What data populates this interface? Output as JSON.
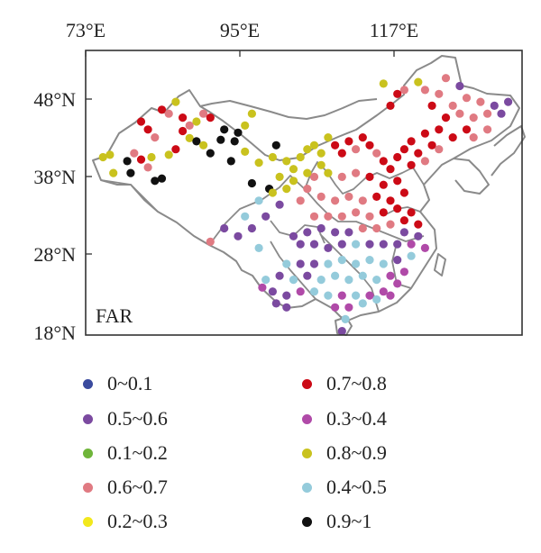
{
  "map": {
    "panel_label": "FAR",
    "lon_ticks": [
      "73°E",
      "95°E",
      "117°E"
    ],
    "lat_ticks": [
      "48°N",
      "38°N",
      "28°N",
      "18°N"
    ],
    "extent": {
      "lon": [
        73,
        136
      ],
      "lat": [
        18,
        54
      ]
    },
    "frame_color": "#333333",
    "border_color": "#8a8a8a"
  },
  "legend": [
    {
      "label": "0~0.1",
      "color": "#3a4a9e"
    },
    {
      "label": "0.7~0.8",
      "color": "#cc0a16"
    },
    {
      "label": "0.5~0.6",
      "color": "#7b4aa0"
    },
    {
      "label": "0.3~0.4",
      "color": "#b04aa8"
    },
    {
      "label": "0.1~0.2",
      "color": "#6fb53a"
    },
    {
      "label": "0.8~0.9",
      "color": "#c9c21e"
    },
    {
      "label": "0.6~0.7",
      "color": "#e07a82"
    },
    {
      "label": "0.4~0.5",
      "color": "#94cbdb"
    },
    {
      "label": "0.2~0.3",
      "color": "#f2e81c"
    },
    {
      "label": "0.9~1",
      "color": "#111111"
    }
  ],
  "stations": [
    {
      "lon": 75.5,
      "lat": 40.5,
      "c": "#c9c21e"
    },
    {
      "lon": 76.5,
      "lat": 40.8,
      "c": "#c9c21e"
    },
    {
      "lon": 77,
      "lat": 38.5,
      "c": "#c9c21e"
    },
    {
      "lon": 79,
      "lat": 40.0,
      "c": "#111111"
    },
    {
      "lon": 79.5,
      "lat": 38.5,
      "c": "#111111"
    },
    {
      "lon": 80,
      "lat": 41.0,
      "c": "#e07a82"
    },
    {
      "lon": 81,
      "lat": 40.2,
      "c": "#cc0a16"
    },
    {
      "lon": 82,
      "lat": 39.2,
      "c": "#e07a82"
    },
    {
      "lon": 82.5,
      "lat": 40.5,
      "c": "#c9c21e"
    },
    {
      "lon": 83,
      "lat": 37.5,
      "c": "#111111"
    },
    {
      "lon": 84,
      "lat": 37.8,
      "c": "#111111"
    },
    {
      "lon": 85,
      "lat": 40.8,
      "c": "#c9c21e"
    },
    {
      "lon": 86,
      "lat": 41.5,
      "c": "#cc0a16"
    },
    {
      "lon": 87,
      "lat": 43.8,
      "c": "#cc0a16"
    },
    {
      "lon": 88,
      "lat": 42.9,
      "c": "#c9c21e"
    },
    {
      "lon": 89,
      "lat": 42.5,
      "c": "#111111"
    },
    {
      "lon": 90,
      "lat": 42.0,
      "c": "#c9c21e"
    },
    {
      "lon": 91,
      "lat": 41.0,
      "c": "#111111"
    },
    {
      "lon": 92.5,
      "lat": 42.7,
      "c": "#111111"
    },
    {
      "lon": 94,
      "lat": 40.0,
      "c": "#111111"
    },
    {
      "lon": 95,
      "lat": 43.6,
      "c": "#111111"
    },
    {
      "lon": 96,
      "lat": 41.2,
      "c": "#c9c21e"
    },
    {
      "lon": 98,
      "lat": 39.8,
      "c": "#c9c21e"
    },
    {
      "lon": 97,
      "lat": 37.2,
      "c": "#111111"
    },
    {
      "lon": 99.5,
      "lat": 36.5,
      "c": "#111111"
    },
    {
      "lon": 101,
      "lat": 38.0,
      "c": "#c9c21e"
    },
    {
      "lon": 100.5,
      "lat": 42.0,
      "c": "#111111"
    },
    {
      "lon": 84,
      "lat": 46.5,
      "c": "#cc0a16"
    },
    {
      "lon": 85,
      "lat": 46.0,
      "c": "#e07a82"
    },
    {
      "lon": 86,
      "lat": 47.5,
      "c": "#c9c21e"
    },
    {
      "lon": 87,
      "lat": 45.5,
      "c": "#cc0a16"
    },
    {
      "lon": 88,
      "lat": 44.5,
      "c": "#e07a82"
    },
    {
      "lon": 89,
      "lat": 45.0,
      "c": "#c9c21e"
    },
    {
      "lon": 90,
      "lat": 46.0,
      "c": "#e07a82"
    },
    {
      "lon": 91,
      "lat": 45.5,
      "c": "#cc0a16"
    },
    {
      "lon": 93,
      "lat": 44.0,
      "c": "#111111"
    },
    {
      "lon": 94.5,
      "lat": 42.5,
      "c": "#111111"
    },
    {
      "lon": 96,
      "lat": 44.5,
      "c": "#c9c21e"
    },
    {
      "lon": 97,
      "lat": 46.0,
      "c": "#c9c21e"
    },
    {
      "lon": 82,
      "lat": 44.0,
      "c": "#cc0a16"
    },
    {
      "lon": 81,
      "lat": 45.0,
      "c": "#cc0a16"
    },
    {
      "lon": 83,
      "lat": 43.0,
      "c": "#e07a82"
    },
    {
      "lon": 100,
      "lat": 40.5,
      "c": "#c9c21e"
    },
    {
      "lon": 102,
      "lat": 40.0,
      "c": "#c9c21e"
    },
    {
      "lon": 103,
      "lat": 39.0,
      "c": "#c9c21e"
    },
    {
      "lon": 104,
      "lat": 40.5,
      "c": "#c9c21e"
    },
    {
      "lon": 105,
      "lat": 41.5,
      "c": "#c9c21e"
    },
    {
      "lon": 106,
      "lat": 42.0,
      "c": "#c9c21e"
    },
    {
      "lon": 107,
      "lat": 41.0,
      "c": "#c9c21e"
    },
    {
      "lon": 108,
      "lat": 43.0,
      "c": "#c9c21e"
    },
    {
      "lon": 109,
      "lat": 42.0,
      "c": "#cc0a16"
    },
    {
      "lon": 110,
      "lat": 41.0,
      "c": "#cc0a16"
    },
    {
      "lon": 111,
      "lat": 42.5,
      "c": "#cc0a16"
    },
    {
      "lon": 112,
      "lat": 41.5,
      "c": "#e07a82"
    },
    {
      "lon": 113,
      "lat": 43.0,
      "c": "#cc0a16"
    },
    {
      "lon": 114,
      "lat": 42.0,
      "c": "#cc0a16"
    },
    {
      "lon": 115,
      "lat": 41.0,
      "c": "#e07a82"
    },
    {
      "lon": 116,
      "lat": 40.0,
      "c": "#cc0a16"
    },
    {
      "lon": 117,
      "lat": 39.0,
      "c": "#cc0a16"
    },
    {
      "lon": 118,
      "lat": 40.5,
      "c": "#cc0a16"
    },
    {
      "lon": 119,
      "lat": 41.5,
      "c": "#cc0a16"
    },
    {
      "lon": 120,
      "lat": 42.5,
      "c": "#cc0a16"
    },
    {
      "lon": 121,
      "lat": 41.0,
      "c": "#cc0a16"
    },
    {
      "lon": 122,
      "lat": 43.5,
      "c": "#cc0a16"
    },
    {
      "lon": 123,
      "lat": 42.0,
      "c": "#cc0a16"
    },
    {
      "lon": 124,
      "lat": 44.0,
      "c": "#cc0a16"
    },
    {
      "lon": 125,
      "lat": 45.5,
      "c": "#cc0a16"
    },
    {
      "lon": 126,
      "lat": 47.0,
      "c": "#e07a82"
    },
    {
      "lon": 127,
      "lat": 46.0,
      "c": "#e07a82"
    },
    {
      "lon": 128,
      "lat": 48.0,
      "c": "#e07a82"
    },
    {
      "lon": 129,
      "lat": 45.5,
      "c": "#e07a82"
    },
    {
      "lon": 130,
      "lat": 47.5,
      "c": "#e07a82"
    },
    {
      "lon": 131,
      "lat": 46.0,
      "c": "#e07a82"
    },
    {
      "lon": 132,
      "lat": 47.0,
      "c": "#7b4aa0"
    },
    {
      "lon": 133,
      "lat": 46.0,
      "c": "#7b4aa0"
    },
    {
      "lon": 134,
      "lat": 47.5,
      "c": "#7b4aa0"
    },
    {
      "lon": 127,
      "lat": 49.5,
      "c": "#7b4aa0"
    },
    {
      "lon": 125,
      "lat": 50.5,
      "c": "#e07a82"
    },
    {
      "lon": 124,
      "lat": 48.5,
      "c": "#e07a82"
    },
    {
      "lon": 123,
      "lat": 47.0,
      "c": "#cc0a16"
    },
    {
      "lon": 122,
      "lat": 49.0,
      "c": "#e07a82"
    },
    {
      "lon": 121,
      "lat": 50.0,
      "c": "#c9c21e"
    },
    {
      "lon": 119,
      "lat": 49.0,
      "c": "#e07a82"
    },
    {
      "lon": 118,
      "lat": 48.5,
      "c": "#cc0a16"
    },
    {
      "lon": 117,
      "lat": 47.0,
      "c": "#cc0a16"
    },
    {
      "lon": 116,
      "lat": 49.8,
      "c": "#c9c21e"
    },
    {
      "lon": 131,
      "lat": 44.0,
      "c": "#e07a82"
    },
    {
      "lon": 129,
      "lat": 43.0,
      "c": "#e07a82"
    },
    {
      "lon": 126,
      "lat": 43.0,
      "c": "#cc0a16"
    },
    {
      "lon": 128,
      "lat": 44.0,
      "c": "#cc0a16"
    },
    {
      "lon": 124,
      "lat": 41.5,
      "c": "#e07a82"
    },
    {
      "lon": 122,
      "lat": 40.0,
      "c": "#e07a82"
    },
    {
      "lon": 120,
      "lat": 39.5,
      "c": "#cc0a16"
    },
    {
      "lon": 118,
      "lat": 37.5,
      "c": "#cc0a16"
    },
    {
      "lon": 116,
      "lat": 37.0,
      "c": "#cc0a16"
    },
    {
      "lon": 114,
      "lat": 38.0,
      "c": "#cc0a16"
    },
    {
      "lon": 112,
      "lat": 38.5,
      "c": "#e07a82"
    },
    {
      "lon": 110,
      "lat": 38.0,
      "c": "#e07a82"
    },
    {
      "lon": 108,
      "lat": 38.5,
      "c": "#c9c21e"
    },
    {
      "lon": 106,
      "lat": 38.0,
      "c": "#e07a82"
    },
    {
      "lon": 105,
      "lat": 36.5,
      "c": "#e07a82"
    },
    {
      "lon": 104,
      "lat": 35.0,
      "c": "#e07a82"
    },
    {
      "lon": 107,
      "lat": 35.5,
      "c": "#e07a82"
    },
    {
      "lon": 109,
      "lat": 35.0,
      "c": "#e07a82"
    },
    {
      "lon": 111,
      "lat": 35.5,
      "c": "#e07a82"
    },
    {
      "lon": 113,
      "lat": 35.0,
      "c": "#e07a82"
    },
    {
      "lon": 115,
      "lat": 35.5,
      "c": "#cc0a16"
    },
    {
      "lon": 117,
      "lat": 35.0,
      "c": "#cc0a16"
    },
    {
      "lon": 119,
      "lat": 36.0,
      "c": "#cc0a16"
    },
    {
      "lon": 118,
      "lat": 34.0,
      "c": "#cc0a16"
    },
    {
      "lon": 116,
      "lat": 33.5,
      "c": "#cc0a16"
    },
    {
      "lon": 114,
      "lat": 33.0,
      "c": "#e07a82"
    },
    {
      "lon": 112,
      "lat": 33.5,
      "c": "#e07a82"
    },
    {
      "lon": 110,
      "lat": 33.0,
      "c": "#e07a82"
    },
    {
      "lon": 108,
      "lat": 33.0,
      "c": "#e07a82"
    },
    {
      "lon": 106,
      "lat": 33.0,
      "c": "#e07a82"
    },
    {
      "lon": 120,
      "lat": 33.5,
      "c": "#cc0a16"
    },
    {
      "lon": 121,
      "lat": 32.0,
      "c": "#cc0a16"
    },
    {
      "lon": 119,
      "lat": 32.5,
      "c": "#cc0a16"
    },
    {
      "lon": 117,
      "lat": 32.0,
      "c": "#e07a82"
    },
    {
      "lon": 115,
      "lat": 31.5,
      "c": "#e07a82"
    },
    {
      "lon": 113,
      "lat": 31.5,
      "c": "#e07a82"
    },
    {
      "lon": 111,
      "lat": 31.0,
      "c": "#7b4aa0"
    },
    {
      "lon": 109,
      "lat": 31.0,
      "c": "#7b4aa0"
    },
    {
      "lon": 107,
      "lat": 31.5,
      "c": "#7b4aa0"
    },
    {
      "lon": 105,
      "lat": 31.0,
      "c": "#7b4aa0"
    },
    {
      "lon": 103,
      "lat": 30.5,
      "c": "#7b4aa0"
    },
    {
      "lon": 104,
      "lat": 29.5,
      "c": "#7b4aa0"
    },
    {
      "lon": 106,
      "lat": 29.5,
      "c": "#7b4aa0"
    },
    {
      "lon": 108,
      "lat": 29.0,
      "c": "#7b4aa0"
    },
    {
      "lon": 110,
      "lat": 29.5,
      "c": "#7b4aa0"
    },
    {
      "lon": 112,
      "lat": 29.5,
      "c": "#94cbdb"
    },
    {
      "lon": 114,
      "lat": 29.5,
      "c": "#7b4aa0"
    },
    {
      "lon": 116,
      "lat": 29.5,
      "c": "#7b4aa0"
    },
    {
      "lon": 118,
      "lat": 29.5,
      "c": "#7b4aa0"
    },
    {
      "lon": 120,
      "lat": 29.5,
      "c": "#b04aa8"
    },
    {
      "lon": 121,
      "lat": 30.5,
      "c": "#7b4aa0"
    },
    {
      "lon": 119,
      "lat": 31.0,
      "c": "#7b4aa0"
    },
    {
      "lon": 122,
      "lat": 29.0,
      "c": "#b04aa8"
    },
    {
      "lon": 120,
      "lat": 28.0,
      "c": "#94cbdb"
    },
    {
      "lon": 118,
      "lat": 27.5,
      "c": "#7b4aa0"
    },
    {
      "lon": 116,
      "lat": 27.0,
      "c": "#94cbdb"
    },
    {
      "lon": 114,
      "lat": 27.5,
      "c": "#94cbdb"
    },
    {
      "lon": 112,
      "lat": 27.0,
      "c": "#94cbdb"
    },
    {
      "lon": 110,
      "lat": 27.5,
      "c": "#94cbdb"
    },
    {
      "lon": 108,
      "lat": 27.0,
      "c": "#94cbdb"
    },
    {
      "lon": 106,
      "lat": 27.0,
      "c": "#7b4aa0"
    },
    {
      "lon": 104,
      "lat": 27.0,
      "c": "#7b4aa0"
    },
    {
      "lon": 102,
      "lat": 27.0,
      "c": "#94cbdb"
    },
    {
      "lon": 101,
      "lat": 25.5,
      "c": "#7b4aa0"
    },
    {
      "lon": 103,
      "lat": 25.0,
      "c": "#94cbdb"
    },
    {
      "lon": 105,
      "lat": 25.5,
      "c": "#7b4aa0"
    },
    {
      "lon": 107,
      "lat": 25.0,
      "c": "#94cbdb"
    },
    {
      "lon": 109,
      "lat": 25.5,
      "c": "#94cbdb"
    },
    {
      "lon": 111,
      "lat": 25.0,
      "c": "#94cbdb"
    },
    {
      "lon": 113,
      "lat": 25.5,
      "c": "#94cbdb"
    },
    {
      "lon": 115,
      "lat": 25.0,
      "c": "#94cbdb"
    },
    {
      "lon": 117,
      "lat": 25.5,
      "c": "#b04aa8"
    },
    {
      "lon": 119,
      "lat": 26.0,
      "c": "#b04aa8"
    },
    {
      "lon": 118,
      "lat": 24.5,
      "c": "#b04aa8"
    },
    {
      "lon": 116,
      "lat": 23.5,
      "c": "#b04aa8"
    },
    {
      "lon": 114,
      "lat": 23.0,
      "c": "#b04aa8"
    },
    {
      "lon": 112,
      "lat": 23.0,
      "c": "#94cbdb"
    },
    {
      "lon": 110,
      "lat": 23.0,
      "c": "#b04aa8"
    },
    {
      "lon": 108,
      "lat": 23.0,
      "c": "#94cbdb"
    },
    {
      "lon": 106,
      "lat": 23.5,
      "c": "#94cbdb"
    },
    {
      "lon": 104,
      "lat": 23.5,
      "c": "#b04aa8"
    },
    {
      "lon": 102,
      "lat": 23.0,
      "c": "#7b4aa0"
    },
    {
      "lon": 100,
      "lat": 23.5,
      "c": "#7b4aa0"
    },
    {
      "lon": 99,
      "lat": 25.0,
      "c": "#94cbdb"
    },
    {
      "lon": 98.5,
      "lat": 24.0,
      "c": "#b04aa8"
    },
    {
      "lon": 100.5,
      "lat": 22.0,
      "c": "#7b4aa0"
    },
    {
      "lon": 102,
      "lat": 21.5,
      "c": "#7b4aa0"
    },
    {
      "lon": 109,
      "lat": 21.5,
      "c": "#b04aa8"
    },
    {
      "lon": 110.5,
      "lat": 20.0,
      "c": "#94cbdb"
    },
    {
      "lon": 110,
      "lat": 18.5,
      "c": "#7b4aa0"
    },
    {
      "lon": 111,
      "lat": 21.5,
      "c": "#b04aa8"
    },
    {
      "lon": 113,
      "lat": 22.0,
      "c": "#94cbdb"
    },
    {
      "lon": 115,
      "lat": 22.5,
      "c": "#94cbdb"
    },
    {
      "lon": 117,
      "lat": 23.0,
      "c": "#b04aa8"
    },
    {
      "lon": 98,
      "lat": 29.0,
      "c": "#94cbdb"
    },
    {
      "lon": 97,
      "lat": 31.5,
      "c": "#7b4aa0"
    },
    {
      "lon": 95,
      "lat": 30.5,
      "c": "#7b4aa0"
    },
    {
      "lon": 93,
      "lat": 31.5,
      "c": "#7b4aa0"
    },
    {
      "lon": 91,
      "lat": 29.8,
      "c": "#e07a82"
    },
    {
      "lon": 99,
      "lat": 33.0,
      "c": "#7b4aa0"
    },
    {
      "lon": 101,
      "lat": 34.5,
      "c": "#7b4aa0"
    },
    {
      "lon": 100,
      "lat": 36.0,
      "c": "#c9c21e"
    },
    {
      "lon": 102,
      "lat": 36.5,
      "c": "#c9c21e"
    },
    {
      "lon": 103,
      "lat": 37.5,
      "c": "#c9c21e"
    },
    {
      "lon": 105,
      "lat": 38.5,
      "c": "#c9c21e"
    },
    {
      "lon": 107,
      "lat": 39.5,
      "c": "#c9c21e"
    },
    {
      "lon": 98,
      "lat": 35.0,
      "c": "#94cbdb"
    },
    {
      "lon": 96,
      "lat": 33.0,
      "c": "#94cbdb"
    }
  ]
}
